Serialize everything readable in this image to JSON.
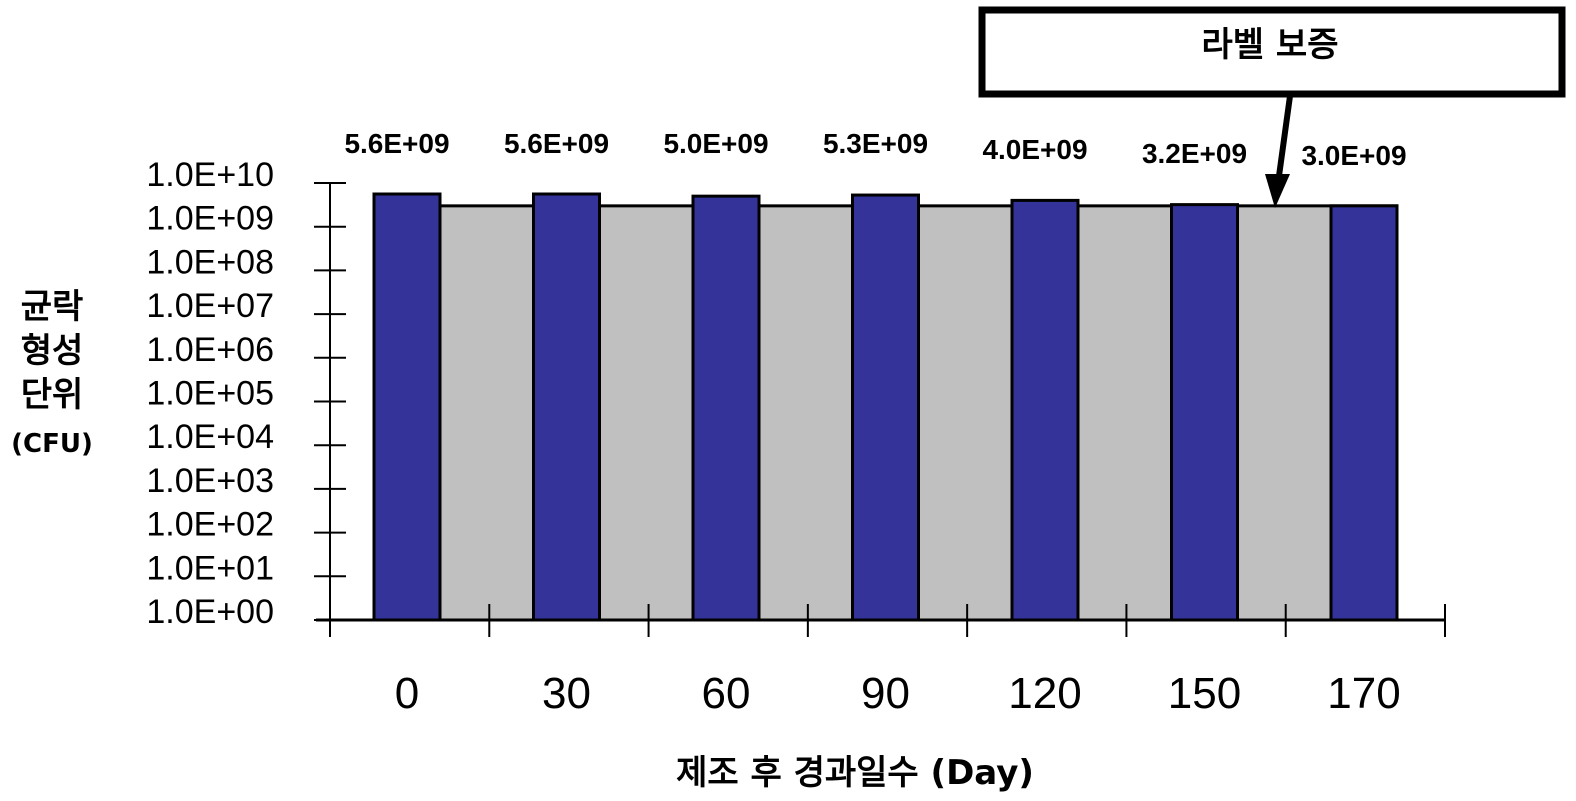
{
  "chart_data": {
    "type": "bar",
    "categories": [
      "0",
      "30",
      "60",
      "90",
      "120",
      "150",
      "170"
    ],
    "values": [
      5600000000.0,
      5600000000.0,
      5000000000.0,
      5300000000.0,
      4000000000.0,
      3200000000.0,
      3000000000.0
    ],
    "data_labels": [
      "5.6E+09",
      "5.6E+09",
      "5.0E+09",
      "5.3E+09",
      "4.0E+09",
      "3.2E+09",
      "3.0E+09"
    ],
    "y_scale": "log",
    "ylim": [
      1,
      10000000000.0
    ],
    "y_ticks": [
      "1.0E+00",
      "1.0E+01",
      "1.0E+02",
      "1.0E+03",
      "1.0E+04",
      "1.0E+05",
      "1.0E+06",
      "1.0E+07",
      "1.0E+08",
      "1.0E+09",
      "1.0E+10"
    ],
    "ylabel_lines": [
      "균락",
      "형성",
      "단위"
    ],
    "ylabel_unit": "(CFU)",
    "xlabel": "제조 후 경과일수 (Day)",
    "reference_level": 3000000000.0,
    "annotation": "라벨 보증",
    "grid": false,
    "colors": {
      "bar": "#333399",
      "reference_area": "#c0c0c0",
      "outline": "#000000"
    }
  }
}
